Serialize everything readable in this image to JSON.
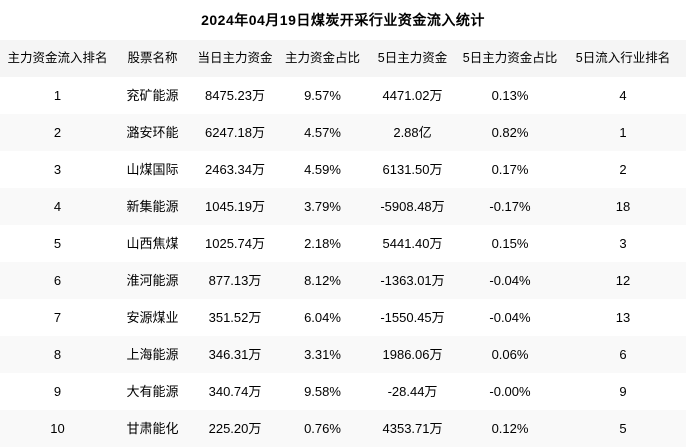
{
  "chart_data": {
    "type": "table",
    "title": "2024年04月19日煤炭开采行业资金流入统计",
    "columns": [
      "主力资金流入排名",
      "股票名称",
      "当日主力资金",
      "主力资金占比",
      "5日主力资金",
      "5日主力资金占比",
      "5日流入行业排名"
    ],
    "rows": [
      [
        "1",
        "兖矿能源",
        "8475.23万",
        "9.57%",
        "4471.02万",
        "0.13%",
        "4"
      ],
      [
        "2",
        "潞安环能",
        "6247.18万",
        "4.57%",
        "2.88亿",
        "0.82%",
        "1"
      ],
      [
        "3",
        "山煤国际",
        "2463.34万",
        "4.59%",
        "6131.50万",
        "0.17%",
        "2"
      ],
      [
        "4",
        "新集能源",
        "1045.19万",
        "3.79%",
        "-5908.48万",
        "-0.17%",
        "18"
      ],
      [
        "5",
        "山西焦煤",
        "1025.74万",
        "2.18%",
        "5441.40万",
        "0.15%",
        "3"
      ],
      [
        "6",
        "淮河能源",
        "877.13万",
        "8.12%",
        "-1363.01万",
        "-0.04%",
        "12"
      ],
      [
        "7",
        "安源煤业",
        "351.52万",
        "6.04%",
        "-1550.45万",
        "-0.04%",
        "13"
      ],
      [
        "8",
        "上海能源",
        "346.31万",
        "3.31%",
        "1986.06万",
        "0.06%",
        "6"
      ],
      [
        "9",
        "大有能源",
        "340.74万",
        "9.58%",
        "-28.44万",
        "-0.00%",
        "9"
      ],
      [
        "10",
        "甘肃能化",
        "225.20万",
        "0.76%",
        "4353.71万",
        "0.12%",
        "5"
      ]
    ]
  },
  "colors": {
    "header_bg": "#f5f5f5",
    "alt_row_bg": "#f9f9f9",
    "row_bg": "#ffffff",
    "text": "#000000"
  }
}
